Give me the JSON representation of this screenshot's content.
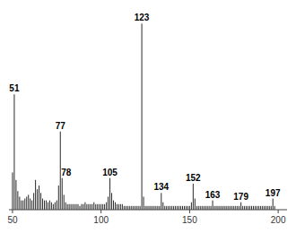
{
  "chart_data": {
    "type": "bar",
    "x": [
      50,
      51,
      52,
      53,
      54,
      55,
      56,
      57,
      58,
      59,
      60,
      61,
      62,
      63,
      64,
      65,
      66,
      67,
      68,
      69,
      70,
      71,
      72,
      73,
      74,
      75,
      76,
      77,
      78,
      79,
      80,
      81,
      82,
      83,
      84,
      85,
      86,
      87,
      88,
      89,
      90,
      91,
      92,
      93,
      94,
      95,
      96,
      97,
      98,
      99,
      100,
      101,
      102,
      103,
      104,
      105,
      106,
      107,
      108,
      109,
      110,
      111,
      112,
      113,
      114,
      115,
      116,
      117,
      118,
      119,
      120,
      121,
      122,
      123,
      124,
      125,
      126,
      127,
      128,
      129,
      130,
      131,
      132,
      133,
      134,
      135,
      136,
      137,
      138,
      139,
      140,
      141,
      142,
      143,
      144,
      145,
      146,
      147,
      148,
      149,
      150,
      151,
      152,
      153,
      154,
      155,
      156,
      157,
      158,
      159,
      160,
      161,
      162,
      163,
      164,
      165,
      166,
      167,
      168,
      169,
      170,
      171,
      172,
      173,
      174,
      175,
      176,
      177,
      178,
      179,
      180,
      181,
      182,
      183,
      184,
      185,
      186,
      187,
      188,
      189,
      190,
      191,
      192,
      193,
      194,
      195,
      196,
      197,
      198
    ],
    "values": [
      20,
      62,
      16,
      10,
      7,
      5,
      5,
      6,
      7,
      8,
      6,
      5,
      9,
      16,
      11,
      13,
      9,
      6,
      5,
      5,
      4,
      5,
      4,
      3,
      4,
      5,
      13,
      42,
      17,
      8,
      4,
      3,
      3,
      3,
      3,
      3,
      3,
      3,
      2,
      3,
      3,
      4,
      3,
      3,
      3,
      3,
      4,
      3,
      3,
      3,
      3,
      3,
      3,
      4,
      7,
      17,
      9,
      5,
      4,
      3,
      3,
      3,
      3,
      2,
      2,
      2,
      2,
      2,
      2,
      2,
      2,
      2,
      2,
      100,
      7,
      2,
      2,
      2,
      2,
      2,
      2,
      2,
      2,
      2,
      9,
      4,
      2,
      2,
      2,
      2,
      2,
      2,
      2,
      2,
      2,
      2,
      2,
      2,
      2,
      2,
      2,
      4,
      14,
      6,
      2,
      2,
      2,
      2,
      2,
      2,
      2,
      2,
      2,
      5,
      2,
      2,
      2,
      2,
      2,
      2,
      2,
      2,
      2,
      2,
      2,
      2,
      2,
      2,
      2,
      4,
      2,
      2,
      2,
      2,
      2,
      2,
      2,
      2,
      2,
      2,
      2,
      2,
      2,
      2,
      2,
      2,
      2,
      6,
      2
    ],
    "color": "#2a2a2a",
    "xlim": [
      48,
      205
    ],
    "xticks": [
      50,
      100,
      150,
      200
    ],
    "ylim": [
      0,
      105
    ],
    "grid": false,
    "tick_labels": "x",
    "annotations": [
      {
        "text": "51",
        "x": 51,
        "y": 62
      },
      {
        "text": "77",
        "x": 77,
        "y": 42
      },
      {
        "text": "78",
        "x": 78,
        "y": 17
      },
      {
        "text": "105",
        "x": 105,
        "y": 17
      },
      {
        "text": "123",
        "x": 123,
        "y": 100
      },
      {
        "text": "134",
        "x": 134,
        "y": 9
      },
      {
        "text": "152",
        "x": 152,
        "y": 14
      },
      {
        "text": "163",
        "x": 163,
        "y": 5
      },
      {
        "text": "179",
        "x": 179,
        "y": 4
      },
      {
        "text": "197",
        "x": 197,
        "y": 6
      }
    ]
  }
}
